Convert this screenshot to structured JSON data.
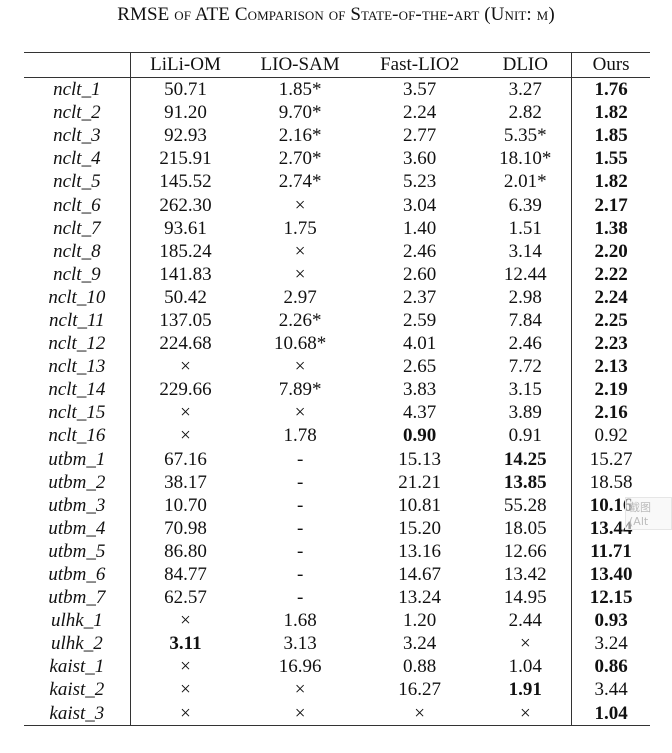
{
  "title": "RMSE of ATE Comparison of State-of-the-art (Unit: m)",
  "columns": [
    "",
    "LiLi-OM",
    "LIO-SAM",
    "Fast-LIO2",
    "DLIO",
    "Ours"
  ],
  "rows": [
    {
      "name": "nclt_1",
      "values": [
        "50.71",
        "1.85*",
        "3.57",
        "3.27",
        "1.76"
      ],
      "bold": [
        4
      ]
    },
    {
      "name": "nclt_2",
      "values": [
        "91.20",
        "9.70*",
        "2.24",
        "2.82",
        "1.82"
      ],
      "bold": [
        4
      ]
    },
    {
      "name": "nclt_3",
      "values": [
        "92.93",
        "2.16*",
        "2.77",
        "5.35*",
        "1.85"
      ],
      "bold": [
        4
      ]
    },
    {
      "name": "nclt_4",
      "values": [
        "215.91",
        "2.70*",
        "3.60",
        "18.10*",
        "1.55"
      ],
      "bold": [
        4
      ]
    },
    {
      "name": "nclt_5",
      "values": [
        "145.52",
        "2.74*",
        "5.23",
        "2.01*",
        "1.82"
      ],
      "bold": [
        4
      ]
    },
    {
      "name": "nclt_6",
      "values": [
        "262.30",
        "×",
        "3.04",
        "6.39",
        "2.17"
      ],
      "bold": [
        4
      ]
    },
    {
      "name": "nclt_7",
      "values": [
        "93.61",
        "1.75",
        "1.40",
        "1.51",
        "1.38"
      ],
      "bold": [
        4
      ]
    },
    {
      "name": "nclt_8",
      "values": [
        "185.24",
        "×",
        "2.46",
        "3.14",
        "2.20"
      ],
      "bold": [
        4
      ]
    },
    {
      "name": "nclt_9",
      "values": [
        "141.83",
        "×",
        "2.60",
        "12.44",
        "2.22"
      ],
      "bold": [
        4
      ]
    },
    {
      "name": "nclt_10",
      "values": [
        "50.42",
        "2.97",
        "2.37",
        "2.98",
        "2.24"
      ],
      "bold": [
        4
      ]
    },
    {
      "name": "nclt_11",
      "values": [
        "137.05",
        "2.26*",
        "2.59",
        "7.84",
        "2.25"
      ],
      "bold": [
        4
      ]
    },
    {
      "name": "nclt_12",
      "values": [
        "224.68",
        "10.68*",
        "4.01",
        "2.46",
        "2.23"
      ],
      "bold": [
        4
      ]
    },
    {
      "name": "nclt_13",
      "values": [
        "×",
        "×",
        "2.65",
        "7.72",
        "2.13"
      ],
      "bold": [
        4
      ]
    },
    {
      "name": "nclt_14",
      "values": [
        "229.66",
        "7.89*",
        "3.83",
        "3.15",
        "2.19"
      ],
      "bold": [
        4
      ]
    },
    {
      "name": "nclt_15",
      "values": [
        "×",
        "×",
        "4.37",
        "3.89",
        "2.16"
      ],
      "bold": [
        4
      ]
    },
    {
      "name": "nclt_16",
      "values": [
        "×",
        "1.78",
        "0.90",
        "0.91",
        "0.92"
      ],
      "bold": [
        2
      ]
    },
    {
      "name": "utbm_1",
      "values": [
        "67.16",
        "-",
        "15.13",
        "14.25",
        "15.27"
      ],
      "bold": [
        3
      ]
    },
    {
      "name": "utbm_2",
      "values": [
        "38.17",
        "-",
        "21.21",
        "13.85",
        "18.58"
      ],
      "bold": [
        3
      ]
    },
    {
      "name": "utbm_3",
      "values": [
        "10.70",
        "-",
        "10.81",
        "55.28",
        "10.16"
      ],
      "bold": [
        4
      ]
    },
    {
      "name": "utbm_4",
      "values": [
        "70.98",
        "-",
        "15.20",
        "18.05",
        "13.44"
      ],
      "bold": [
        4
      ]
    },
    {
      "name": "utbm_5",
      "values": [
        "86.80",
        "-",
        "13.16",
        "12.66",
        "11.71"
      ],
      "bold": [
        4
      ]
    },
    {
      "name": "utbm_6",
      "values": [
        "84.77",
        "-",
        "14.67",
        "13.42",
        "13.40"
      ],
      "bold": [
        4
      ]
    },
    {
      "name": "utbm_7",
      "values": [
        "62.57",
        "-",
        "13.24",
        "14.95",
        "12.15"
      ],
      "bold": [
        4
      ]
    },
    {
      "name": "ulhk_1",
      "values": [
        "×",
        "1.68",
        "1.20",
        "2.44",
        "0.93"
      ],
      "bold": [
        4
      ]
    },
    {
      "name": "ulhk_2",
      "values": [
        "3.11",
        "3.13",
        "3.24",
        "×",
        "3.24"
      ],
      "bold": [
        0
      ]
    },
    {
      "name": "kaist_1",
      "values": [
        "×",
        "16.96",
        "0.88",
        "1.04",
        "0.86"
      ],
      "bold": [
        4
      ]
    },
    {
      "name": "kaist_2",
      "values": [
        "×",
        "×",
        "16.27",
        "1.91",
        "3.44"
      ],
      "bold": [
        3
      ]
    },
    {
      "name": "kaist_3",
      "values": [
        "×",
        "×",
        "×",
        "×",
        "1.04"
      ],
      "bold": [
        4
      ]
    }
  ],
  "overlay_text": "截图(Alt"
}
